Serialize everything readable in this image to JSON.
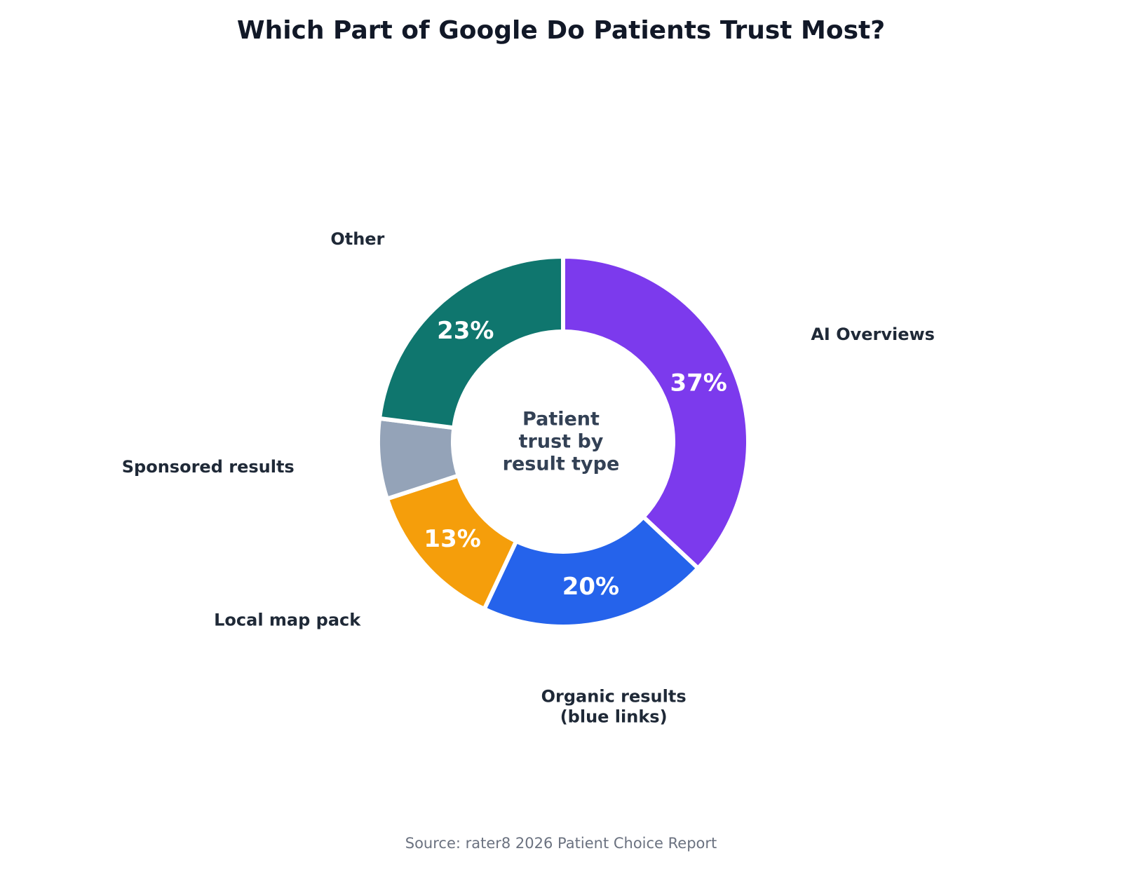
{
  "chart_data": {
    "type": "pie",
    "title": "Which Part of Google Do Patients Trust Most?",
    "center_label": [
      "Patient",
      "trust by",
      "result type"
    ],
    "source": "Source: rater8 2026 Patient Choice Report",
    "slices": [
      {
        "label": [
          "AI Overviews"
        ],
        "value": 37,
        "value_label": "37%",
        "color": "#7c3aed"
      },
      {
        "label": [
          "Organic results",
          "(blue links)"
        ],
        "value": 20,
        "value_label": "20%",
        "color": "#2563eb"
      },
      {
        "label": [
          "Local map pack"
        ],
        "value": 13,
        "value_label": "13%",
        "color": "#f59e0b"
      },
      {
        "label": [
          "Sponsored results"
        ],
        "value": 7,
        "value_label": "",
        "color": "#94a3b8"
      },
      {
        "label": [
          "Other"
        ],
        "value": 23,
        "value_label": "23%",
        "color": "#0f766e"
      }
    ],
    "start": "top",
    "direction": "clockwise",
    "legend": "none"
  }
}
